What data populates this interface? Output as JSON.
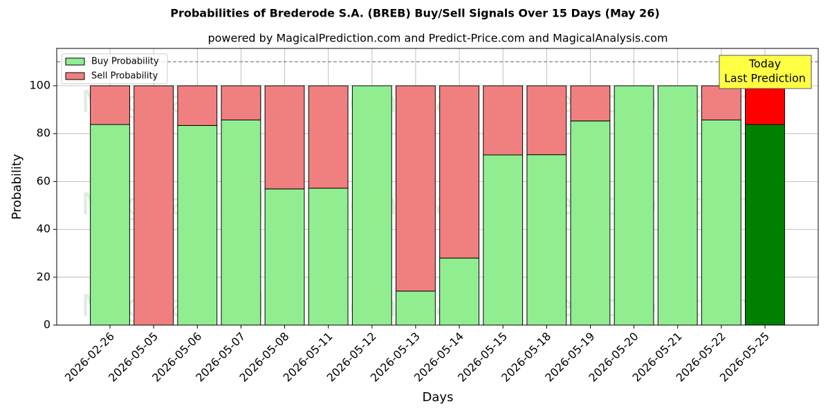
{
  "chart_data": {
    "type": "stacked_bar",
    "title": "Probabilities of Brederode S.A. (BREB) Buy/Sell Signals Over 15 Days (May 26)",
    "subtitle": "powered by MagicalPrediction.com and Predict-Price.com and MagicalAnalysis.com",
    "x_label": "Days",
    "y_label": "Probability",
    "categories": [
      "2026-02-26",
      "2026-05-05",
      "2026-05-06",
      "2026-05-07",
      "2026-05-08",
      "2026-05-11",
      "2026-05-12",
      "2026-05-13",
      "2026-05-14",
      "2026-05-15",
      "2026-05-18",
      "2026-05-19",
      "2026-05-20",
      "2026-05-21",
      "2026-05-22",
      "2026-05-25"
    ],
    "series": [
      {
        "name": "Buy Probability",
        "color": "#90ee90",
        "colors": [
          "#90ee90",
          "#90ee90",
          "#90ee90",
          "#90ee90",
          "#90ee90",
          "#90ee90",
          "#90ee90",
          "#90ee90",
          "#90ee90",
          "#90ee90",
          "#90ee90",
          "#90ee90",
          "#90ee90",
          "#90ee90",
          "#90ee90",
          "#008000"
        ],
        "values": [
          83.8,
          0,
          83.4,
          85.7,
          56.9,
          57.2,
          100,
          14.2,
          28.0,
          71.1,
          71.2,
          85.3,
          100,
          100,
          85.7,
          83.8
        ]
      },
      {
        "name": "Sell Probability",
        "color": "#f08080",
        "colors": [
          "#f08080",
          "#f08080",
          "#f08080",
          "#f08080",
          "#f08080",
          "#f08080",
          "#f08080",
          "#f08080",
          "#f08080",
          "#f08080",
          "#f08080",
          "#f08080",
          "#f08080",
          "#f08080",
          "#f08080",
          "#ff0000"
        ],
        "values": [
          16.2,
          100,
          16.6,
          14.3,
          43.1,
          42.8,
          0,
          85.8,
          72.0,
          28.9,
          28.8,
          14.7,
          0,
          0,
          14.3,
          16.2
        ]
      }
    ],
    "ylim": [
      0,
      115.6
    ],
    "yticks": [
      0,
      20,
      40,
      60,
      80,
      100
    ],
    "reference_line": 110,
    "grid": true,
    "legend": "upper left",
    "annotation": [
      "Today",
      "Last Prediction"
    ],
    "watermarks": [
      "MagicalAnalysis.com",
      "MagicalPrediction.com"
    ]
  }
}
